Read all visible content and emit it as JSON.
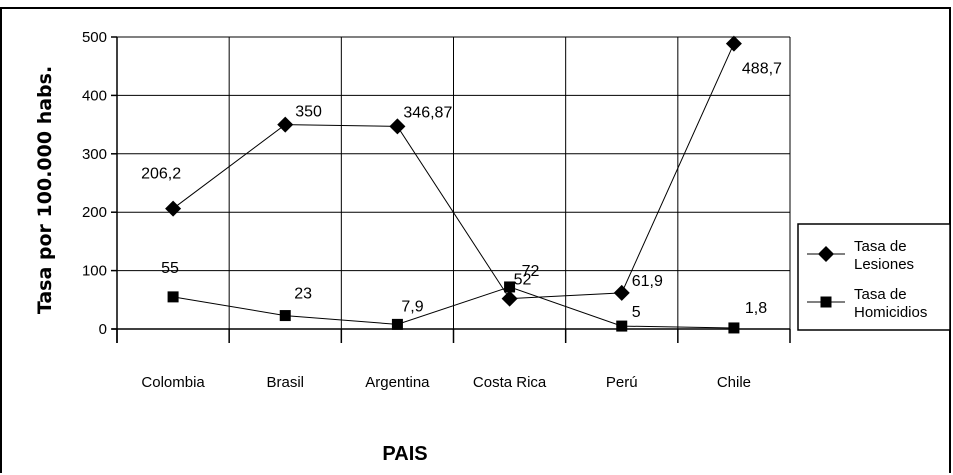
{
  "chart_data": {
    "type": "line",
    "title": "",
    "xlabel": "PAIS",
    "ylabel": "Tasa por 100.000 habs.",
    "categories": [
      "Colombia",
      "Brasil",
      "Argentina",
      "Costa Rica",
      "Perú",
      "Chile"
    ],
    "ylim": [
      0,
      500
    ],
    "yticks": [
      "0",
      "100",
      "200",
      "300",
      "400",
      "500"
    ],
    "grid": true,
    "legend_position": "right",
    "series": [
      {
        "name": "Tasa de Lesiones",
        "name_lines": [
          "Tasa de",
          "Lesiones"
        ],
        "marker": "diamond",
        "values": [
          206.2,
          350,
          346.87,
          52,
          61.9,
          488.7
        ],
        "labels": [
          "206,2",
          "350",
          "346,87",
          "52",
          "61,9",
          "488,7"
        ]
      },
      {
        "name": "Tasa de Homicidios",
        "name_lines": [
          "Tasa de",
          "Homicidios"
        ],
        "marker": "square",
        "values": [
          55,
          23,
          7.9,
          72,
          5,
          1.8
        ],
        "labels": [
          "55",
          "23",
          "7,9",
          "72",
          "5",
          "1,8"
        ]
      }
    ]
  }
}
